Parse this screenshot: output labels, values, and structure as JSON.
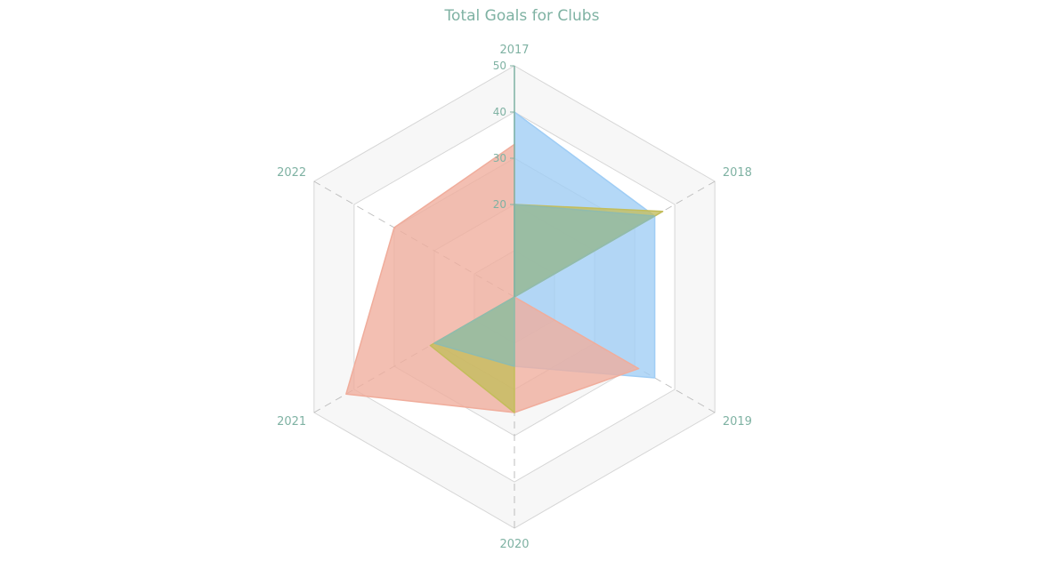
{
  "chart_data": {
    "type": "radar",
    "title": "Total Goals for Clubs",
    "categories": [
      "2017",
      "2018",
      "2019",
      "2020",
      "2021",
      "2022"
    ],
    "rlim": [
      0,
      50
    ],
    "ticks": [
      20,
      30,
      40,
      50
    ],
    "grid": true,
    "series": [
      {
        "values": [
          40,
          35,
          35,
          15,
          0,
          0
        ],
        "color": "#9fcdf5"
      },
      {
        "values": [
          33,
          0,
          31,
          25,
          42,
          30
        ],
        "color": "#f0ad9c"
      },
      {
        "values": [
          20,
          37,
          0,
          25,
          21,
          0
        ],
        "color": "#c3bd5b"
      },
      {
        "values": [
          20,
          35,
          0,
          15,
          20,
          0
        ],
        "color": "#8fbbae"
      }
    ]
  }
}
